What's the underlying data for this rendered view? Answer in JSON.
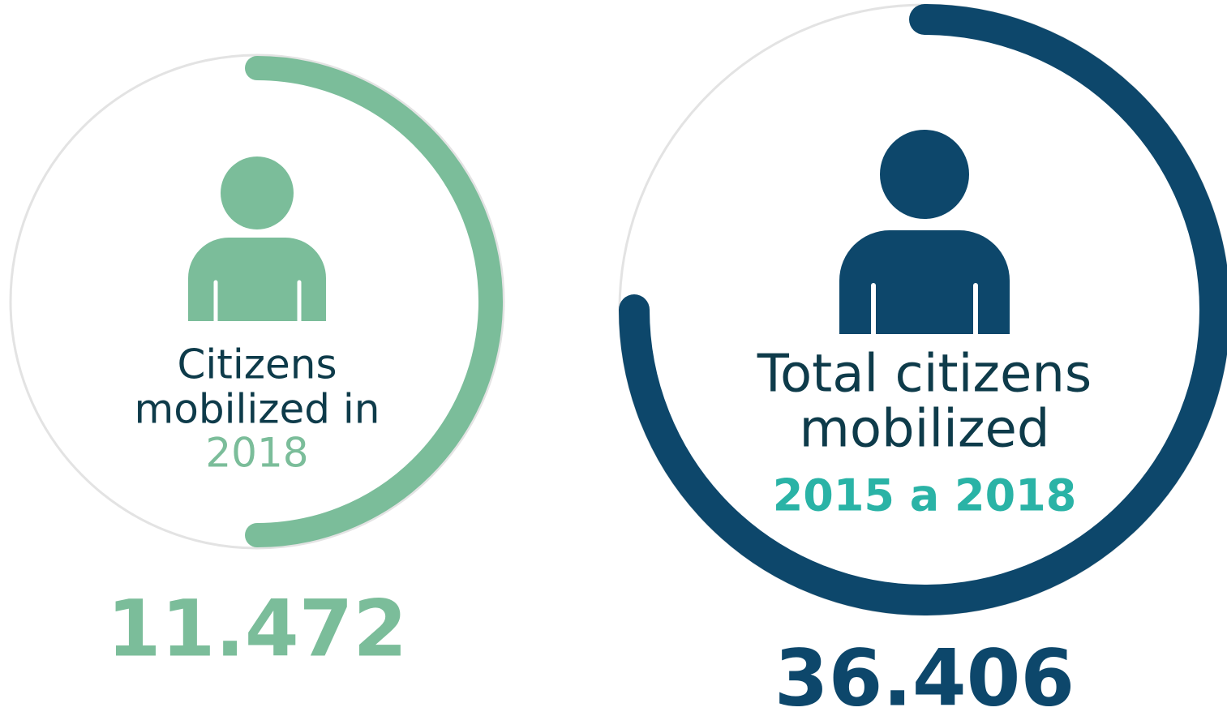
{
  "cards": [
    {
      "title_lines": [
        "Citizens",
        "mobilized in"
      ],
      "period": "2018",
      "value": "11.472"
    },
    {
      "title_lines": [
        "Total citizens",
        "mobilized"
      ],
      "period": "2015 a 2018",
      "value": "36.406"
    }
  ]
}
